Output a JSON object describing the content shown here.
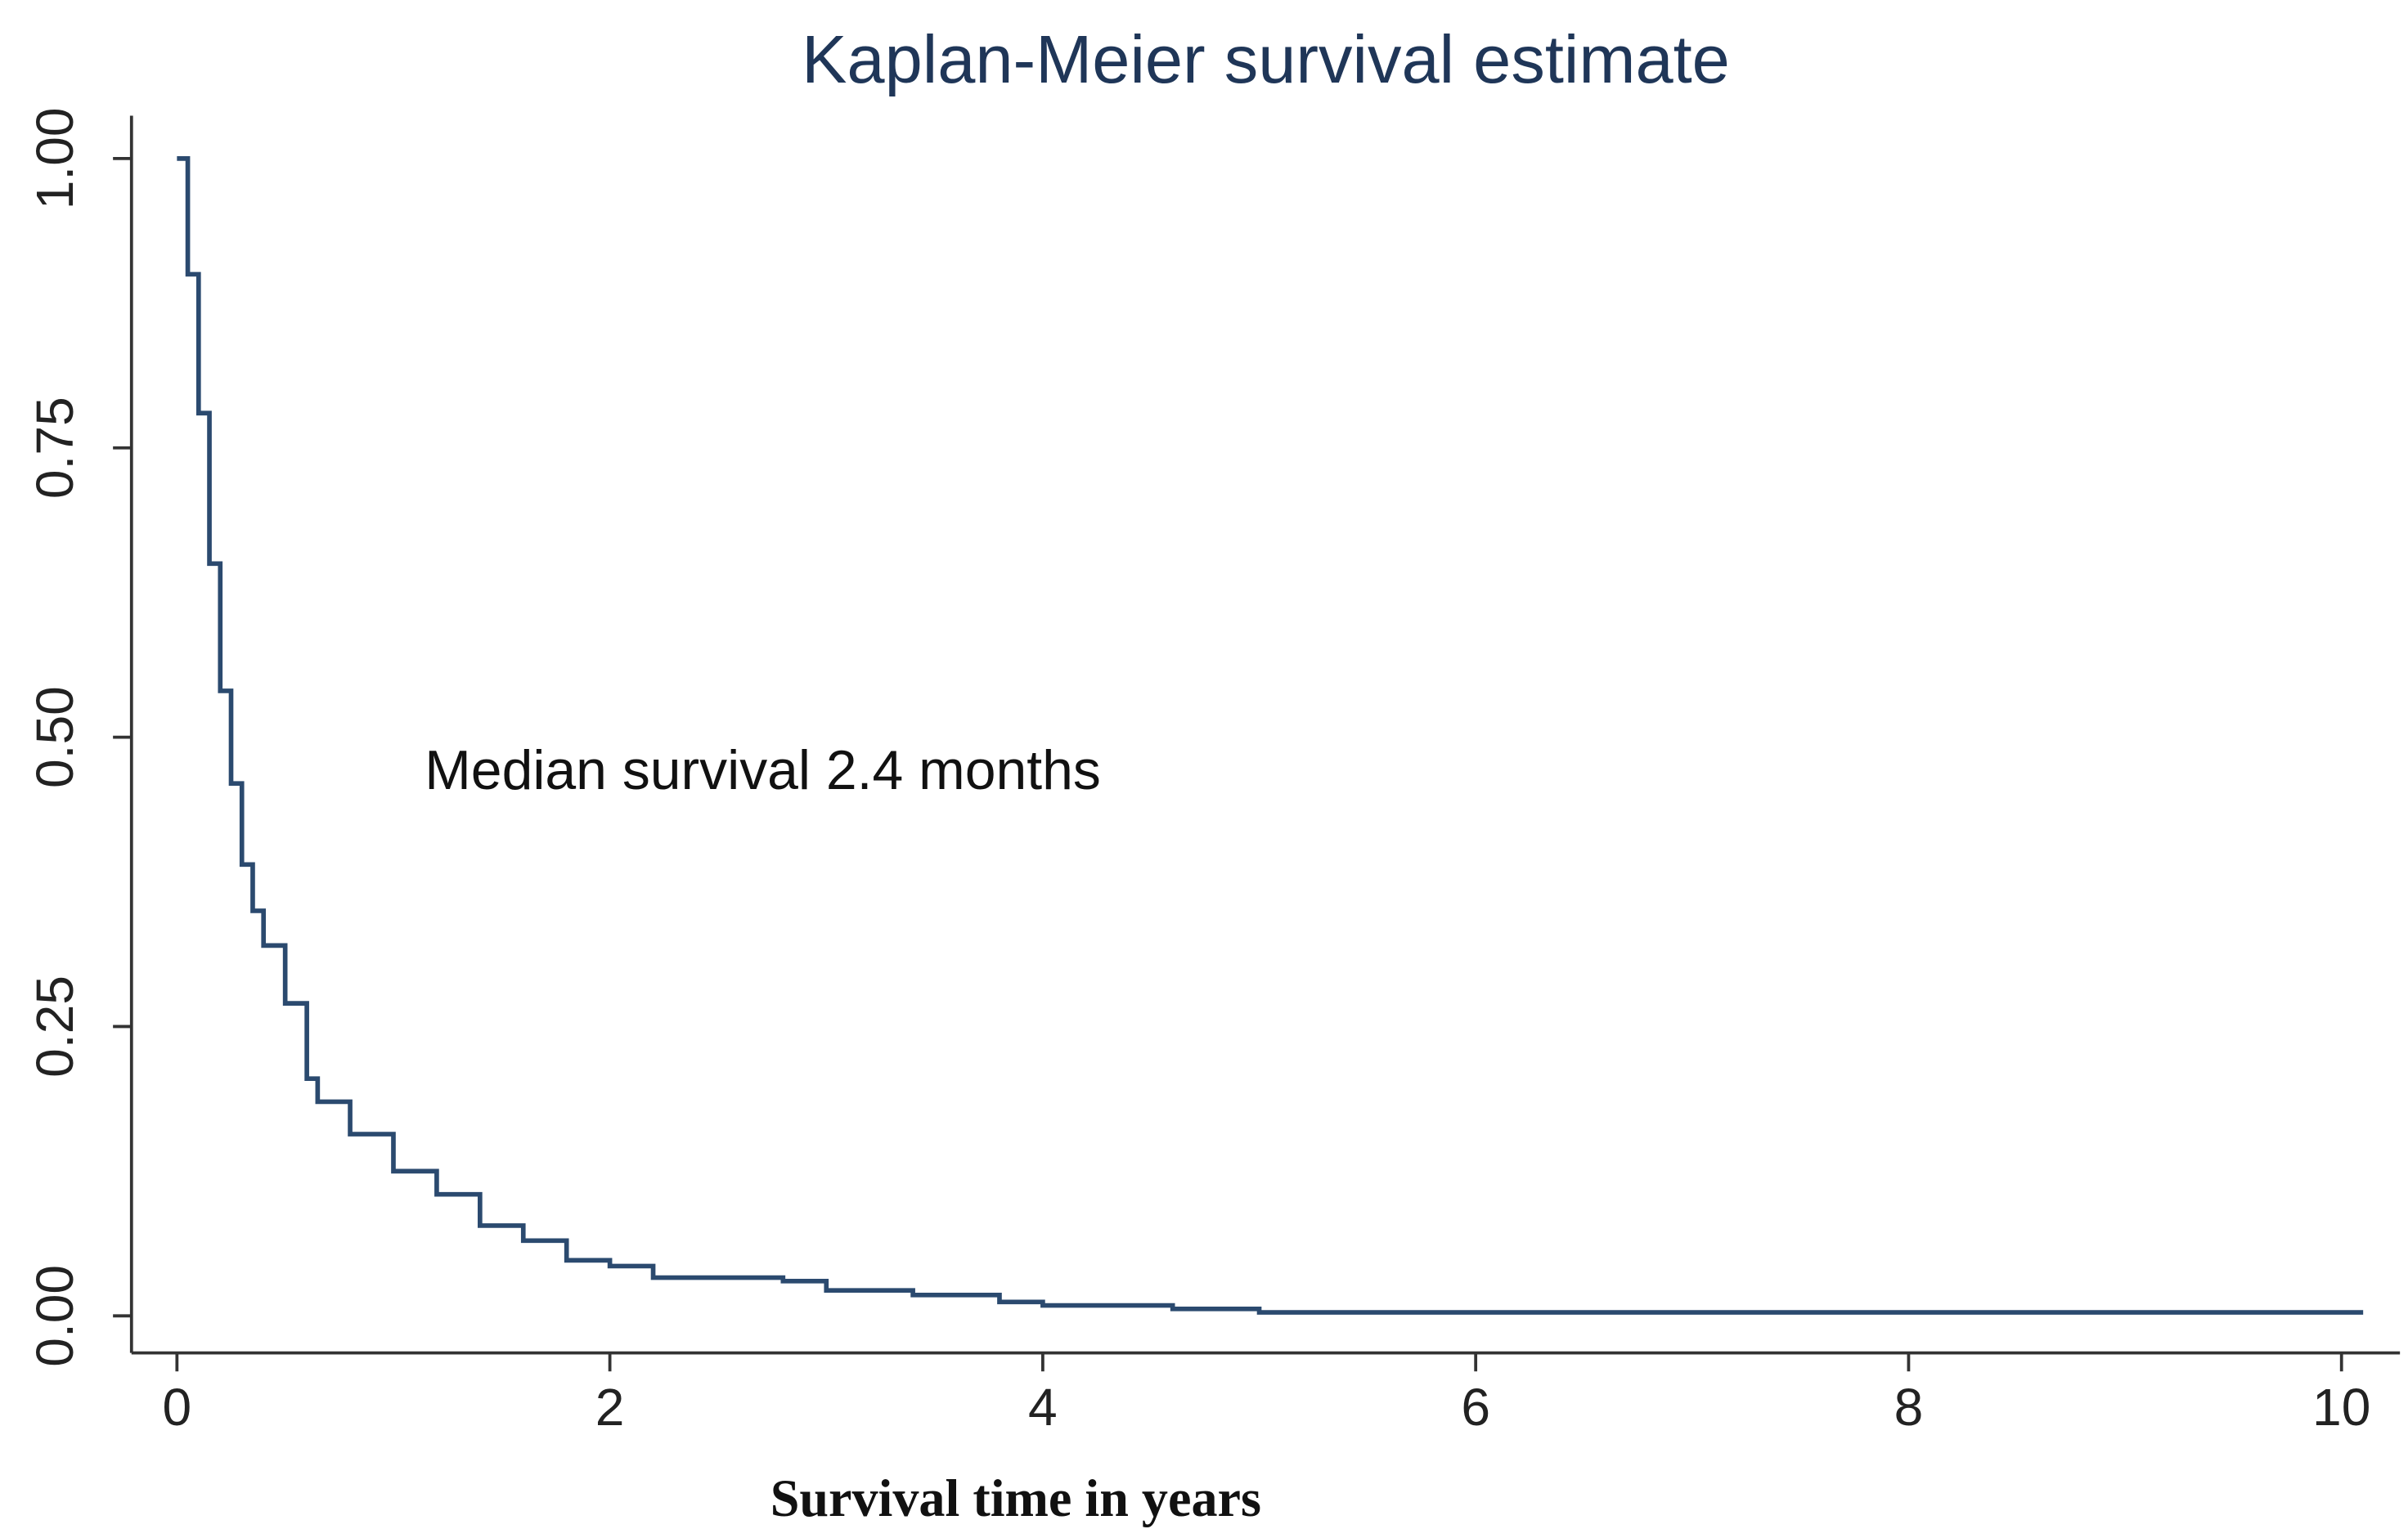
{
  "chart_data": {
    "type": "step",
    "title": "Kaplan-Meier survival estimate",
    "xlabel": "Survival time in years",
    "annotation": "Median survival 2.4 months",
    "color": "#2b4a6f",
    "x": [
      0,
      0.05,
      0.1,
      0.15,
      0.2,
      0.25,
      0.3,
      0.35,
      0.4,
      0.5,
      0.6,
      0.65,
      0.8,
      1.0,
      1.2,
      1.4,
      1.6,
      1.8,
      2.0,
      2.2,
      2.8,
      3.0,
      3.4,
      3.8,
      4.0,
      4.6,
      5.0,
      10.1
    ],
    "values": [
      1.0,
      0.9,
      0.78,
      0.65,
      0.54,
      0.46,
      0.39,
      0.35,
      0.32,
      0.27,
      0.205,
      0.185,
      0.157,
      0.125,
      0.105,
      0.078,
      0.065,
      0.048,
      0.043,
      0.033,
      0.03,
      0.022,
      0.018,
      0.012,
      0.009,
      0.006,
      0.003,
      0.003
    ],
    "xlim": [
      -0.21,
      10.27
    ],
    "ylim": [
      -0.032,
      1.037
    ],
    "xticks": [
      0,
      2,
      4,
      6,
      8,
      10
    ],
    "yticks": [
      {
        "value": 0,
        "label": "0.00"
      },
      0.25,
      {
        "value": 0.5,
        "label": "0.50"
      },
      0.75,
      {
        "value": 1,
        "label": "1.00"
      }
    ],
    "grid": false
  }
}
